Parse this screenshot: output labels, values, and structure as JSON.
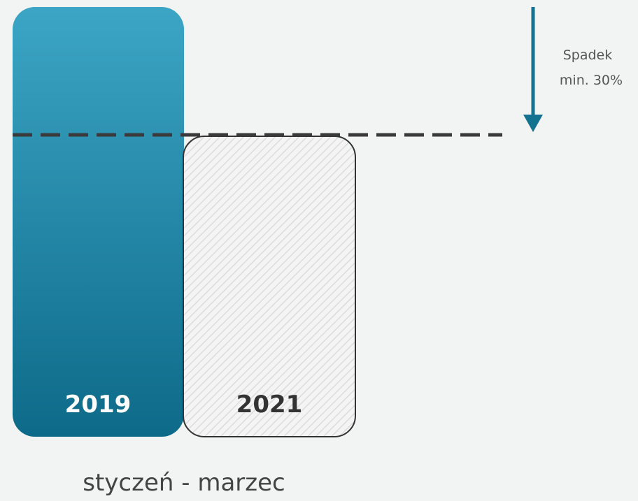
{
  "bars": [
    {
      "label": "2019"
    },
    {
      "label": "2021"
    }
  ],
  "annotation": {
    "lines": [
      "Spadek",
      "min. 30%"
    ]
  },
  "caption": "styczeń - marzec"
}
